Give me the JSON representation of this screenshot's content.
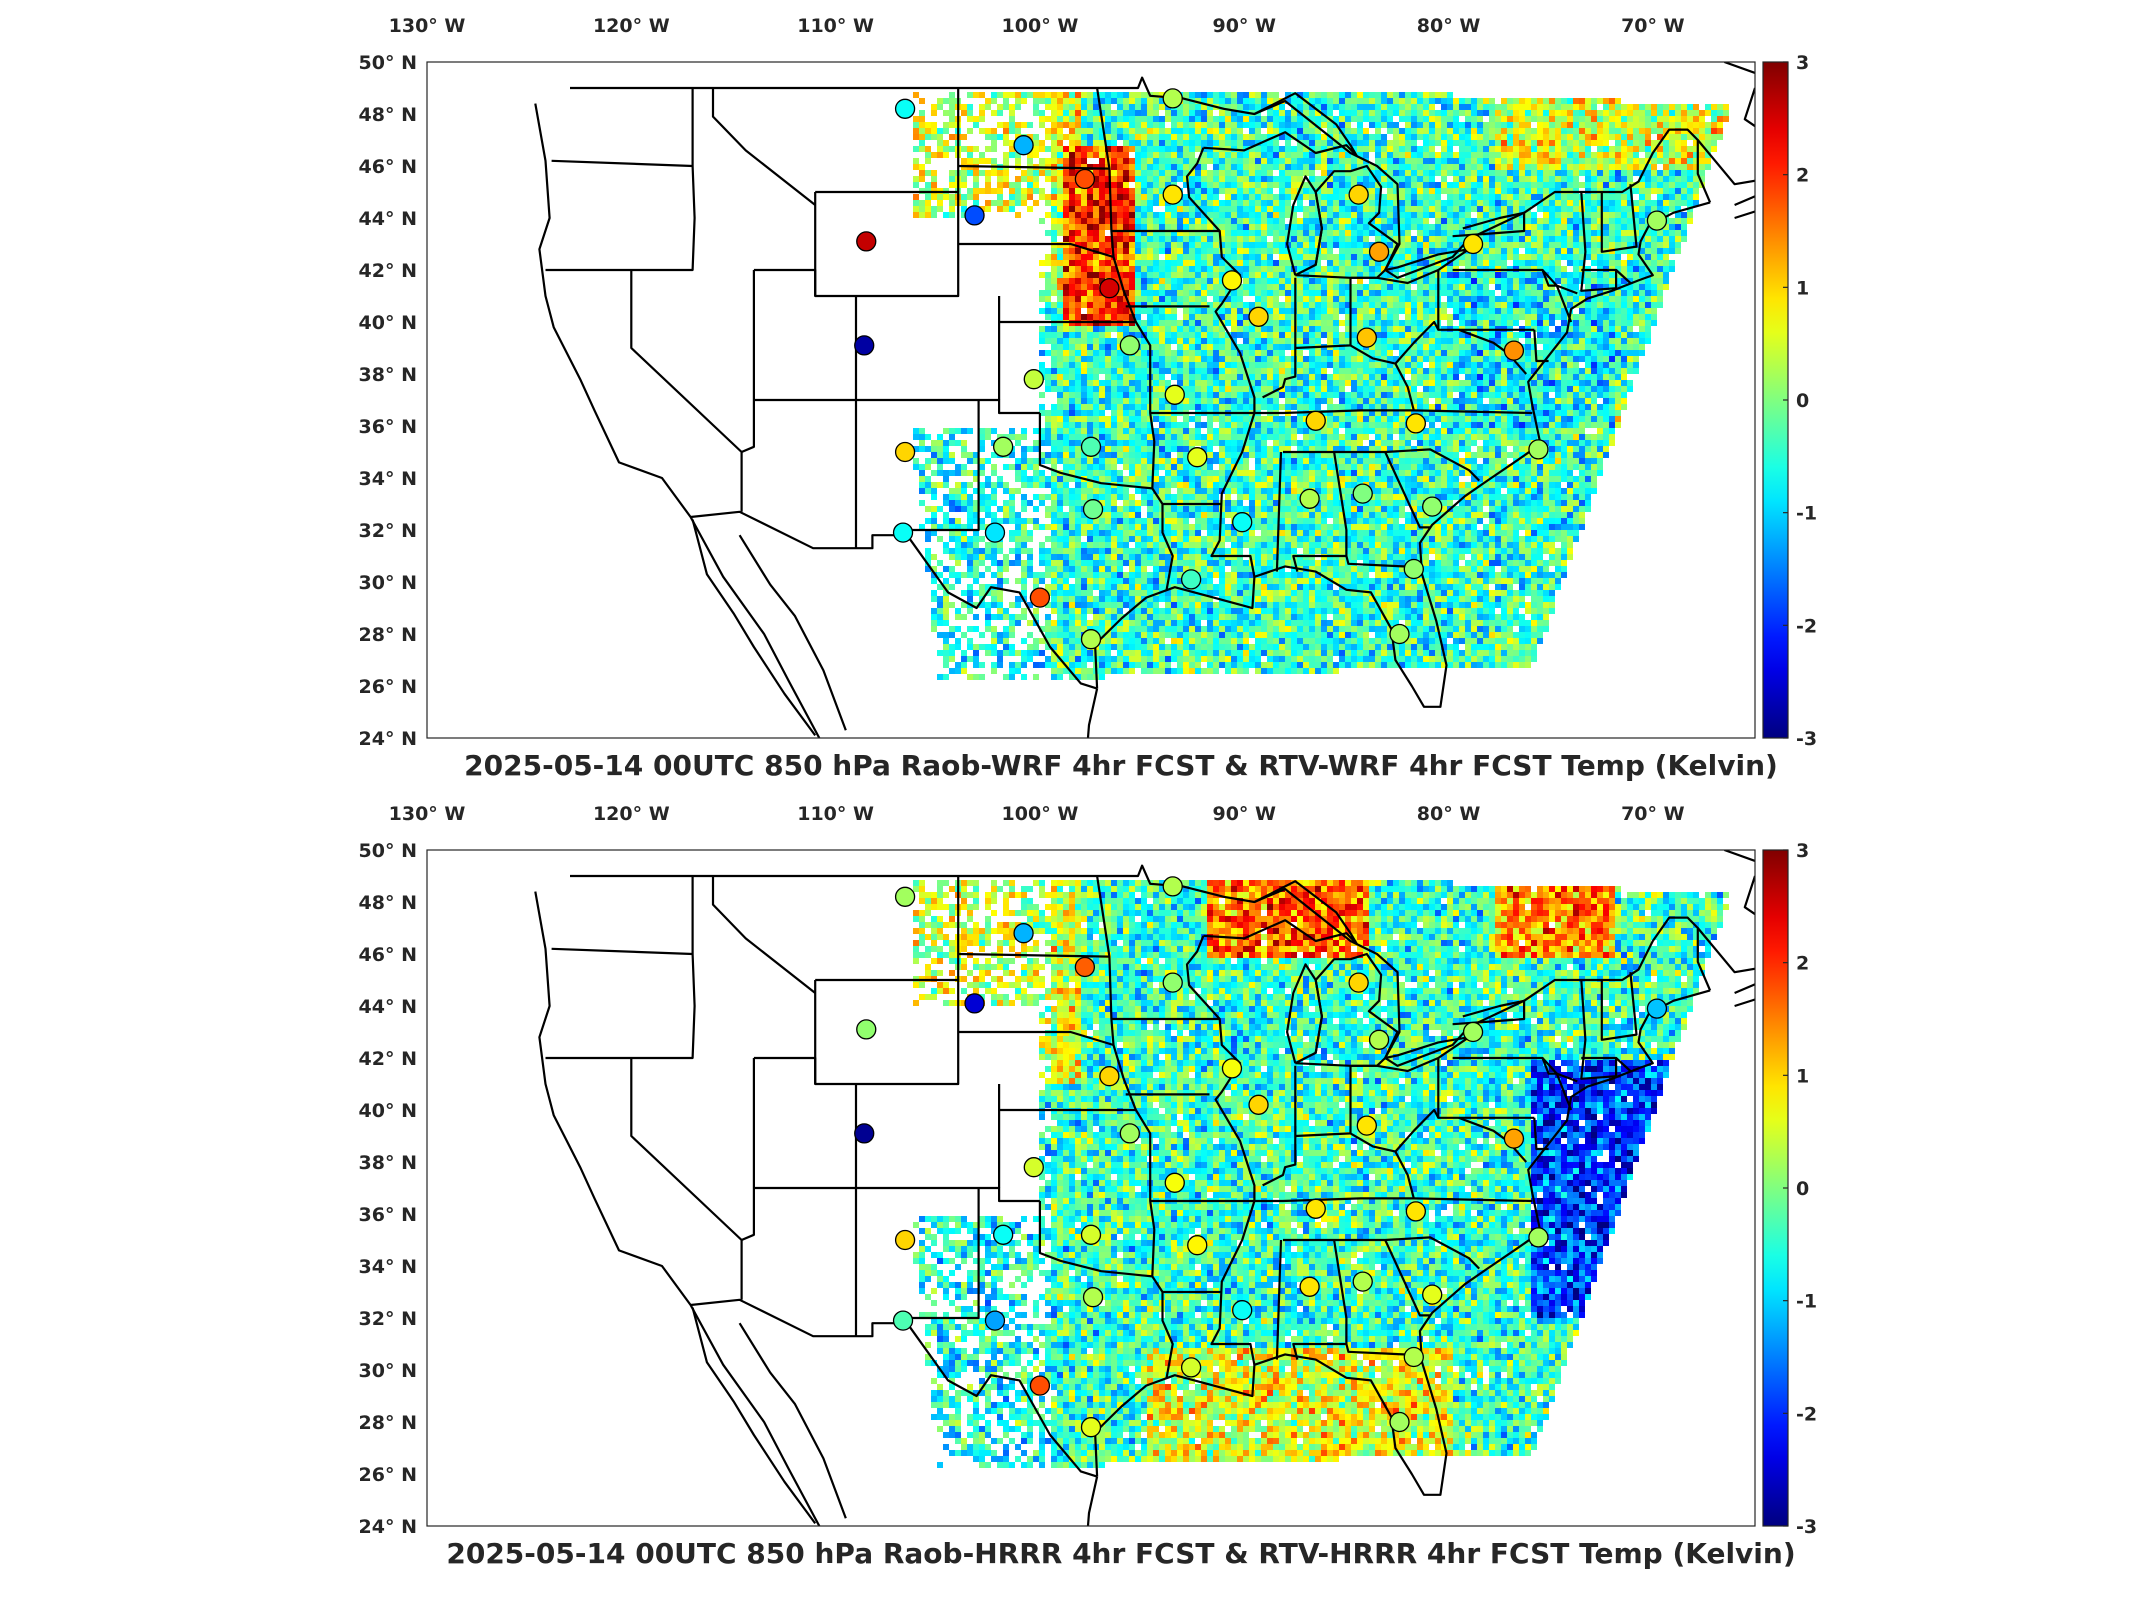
{
  "panels": [
    {
      "id": "wrf",
      "title": "2025-05-14 00UTC 850 hPa Raob-WRF 4hr FCST & RTV-WRF 4hr FCST Temp (Kelvin)",
      "field_variant": "wrf",
      "stations": [
        {
          "lon": -106.6,
          "lat": 48.2,
          "v": -0.7
        },
        {
          "lon": -100.8,
          "lat": 46.8,
          "v": -1.2
        },
        {
          "lon": -97.8,
          "lat": 45.5,
          "v": 1.8
        },
        {
          "lon": -103.2,
          "lat": 44.1,
          "v": -1.8
        },
        {
          "lon": -108.5,
          "lat": 43.1,
          "v": 2.6
        },
        {
          "lon": -108.6,
          "lat": 39.1,
          "v": -2.8
        },
        {
          "lon": -106.6,
          "lat": 35.0,
          "v": 1.0
        },
        {
          "lon": -106.7,
          "lat": 31.9,
          "v": -0.7
        },
        {
          "lon": -102.2,
          "lat": 31.9,
          "v": -0.9
        },
        {
          "lon": -101.8,
          "lat": 35.2,
          "v": 0.2
        },
        {
          "lon": -100.0,
          "lat": 29.4,
          "v": 1.8
        },
        {
          "lon": -97.5,
          "lat": 27.8,
          "v": 0.3
        },
        {
          "lon": -97.4,
          "lat": 32.8,
          "v": -0.1
        },
        {
          "lon": -97.5,
          "lat": 35.2,
          "v": -0.3
        },
        {
          "lon": -100.3,
          "lat": 37.8,
          "v": 0.4
        },
        {
          "lon": -96.6,
          "lat": 41.3,
          "v": 2.5
        },
        {
          "lon": -95.6,
          "lat": 39.1,
          "v": 0.1
        },
        {
          "lon": -93.4,
          "lat": 37.2,
          "v": 0.6
        },
        {
          "lon": -92.3,
          "lat": 34.8,
          "v": 0.6
        },
        {
          "lon": -93.5,
          "lat": 44.9,
          "v": 0.9
        },
        {
          "lon": -93.5,
          "lat": 48.6,
          "v": 0.3
        },
        {
          "lon": -92.6,
          "lat": 30.1,
          "v": -0.4
        },
        {
          "lon": -90.6,
          "lat": 41.6,
          "v": 0.8
        },
        {
          "lon": -89.3,
          "lat": 40.2,
          "v": 1.0
        },
        {
          "lon": -90.1,
          "lat": 32.3,
          "v": -0.7
        },
        {
          "lon": -86.8,
          "lat": 33.2,
          "v": 0.3
        },
        {
          "lon": -86.5,
          "lat": 36.2,
          "v": 1.0
        },
        {
          "lon": -84.2,
          "lat": 33.4,
          "v": 0.0
        },
        {
          "lon": -84.0,
          "lat": 39.4,
          "v": 1.1
        },
        {
          "lon": -84.4,
          "lat": 44.9,
          "v": 1.0
        },
        {
          "lon": -83.4,
          "lat": 42.7,
          "v": 1.3
        },
        {
          "lon": -81.6,
          "lat": 36.1,
          "v": 0.9
        },
        {
          "lon": -80.8,
          "lat": 32.9,
          "v": 0.1
        },
        {
          "lon": -81.7,
          "lat": 30.5,
          "v": 0.1
        },
        {
          "lon": -82.4,
          "lat": 28.0,
          "v": 0.2
        },
        {
          "lon": -78.8,
          "lat": 43.0,
          "v": 0.9
        },
        {
          "lon": -76.8,
          "lat": 38.9,
          "v": 1.4
        },
        {
          "lon": -75.6,
          "lat": 35.1,
          "v": 0.2
        },
        {
          "lon": -69.8,
          "lat": 43.9,
          "v": 0.2
        }
      ]
    },
    {
      "id": "hrrr",
      "title": "2025-05-14 00UTC 850 hPa Raob-HRRR 4hr FCST & RTV-HRRR 4hr FCST Temp (Kelvin)",
      "field_variant": "hrrr",
      "stations": [
        {
          "lon": -106.6,
          "lat": 48.2,
          "v": 0.2
        },
        {
          "lon": -100.8,
          "lat": 46.8,
          "v": -1.2
        },
        {
          "lon": -97.8,
          "lat": 45.5,
          "v": 1.7
        },
        {
          "lon": -103.2,
          "lat": 44.1,
          "v": -2.5
        },
        {
          "lon": -108.5,
          "lat": 43.1,
          "v": 0.1
        },
        {
          "lon": -108.6,
          "lat": 39.1,
          "v": -2.9
        },
        {
          "lon": -106.6,
          "lat": 35.0,
          "v": 1.0
        },
        {
          "lon": -106.7,
          "lat": 31.9,
          "v": -0.3
        },
        {
          "lon": -102.2,
          "lat": 31.9,
          "v": -1.3
        },
        {
          "lon": -101.8,
          "lat": 35.2,
          "v": -0.7
        },
        {
          "lon": -100.0,
          "lat": 29.4,
          "v": 1.8
        },
        {
          "lon": -97.5,
          "lat": 27.8,
          "v": 0.6
        },
        {
          "lon": -97.4,
          "lat": 32.8,
          "v": 0.3
        },
        {
          "lon": -97.5,
          "lat": 35.2,
          "v": 0.5
        },
        {
          "lon": -100.3,
          "lat": 37.8,
          "v": 0.5
        },
        {
          "lon": -96.6,
          "lat": 41.3,
          "v": 1.0
        },
        {
          "lon": -95.6,
          "lat": 39.1,
          "v": 0.2
        },
        {
          "lon": -93.4,
          "lat": 37.2,
          "v": 0.7
        },
        {
          "lon": -92.3,
          "lat": 34.8,
          "v": 0.8
        },
        {
          "lon": -93.5,
          "lat": 44.9,
          "v": 0.1
        },
        {
          "lon": -93.5,
          "lat": 48.6,
          "v": 0.3
        },
        {
          "lon": -92.6,
          "lat": 30.1,
          "v": 0.5
        },
        {
          "lon": -90.6,
          "lat": 41.6,
          "v": 0.7
        },
        {
          "lon": -89.3,
          "lat": 40.2,
          "v": 1.0
        },
        {
          "lon": -90.1,
          "lat": 32.3,
          "v": -0.7
        },
        {
          "lon": -86.8,
          "lat": 33.2,
          "v": 0.9
        },
        {
          "lon": -86.5,
          "lat": 36.2,
          "v": 0.9
        },
        {
          "lon": -84.2,
          "lat": 33.4,
          "v": 0.3
        },
        {
          "lon": -84.0,
          "lat": 39.4,
          "v": 0.9
        },
        {
          "lon": -84.4,
          "lat": 44.9,
          "v": 1.0
        },
        {
          "lon": -83.4,
          "lat": 42.7,
          "v": 0.3
        },
        {
          "lon": -81.6,
          "lat": 36.1,
          "v": 0.9
        },
        {
          "lon": -80.8,
          "lat": 32.9,
          "v": 0.6
        },
        {
          "lon": -81.7,
          "lat": 30.5,
          "v": 0.3
        },
        {
          "lon": -82.4,
          "lat": 28.0,
          "v": 0.2
        },
        {
          "lon": -78.8,
          "lat": 43.0,
          "v": 0.2
        },
        {
          "lon": -76.8,
          "lat": 38.9,
          "v": 1.3
        },
        {
          "lon": -75.6,
          "lat": 35.1,
          "v": 0.2
        },
        {
          "lon": -69.8,
          "lat": 43.9,
          "v": -1.1
        }
      ]
    }
  ],
  "lon_ticks": [
    "130° W",
    "120° W",
    "110° W",
    "100° W",
    "90° W",
    "80° W",
    "70° W"
  ],
  "lat_ticks": [
    "50° N",
    "48° N",
    "46° N",
    "44° N",
    "42° N",
    "40° N",
    "38° N",
    "36° N",
    "34° N",
    "32° N",
    "30° N",
    "28° N",
    "26° N",
    "24° N"
  ],
  "colorbar": {
    "ticks": [
      "3",
      "2",
      "1",
      "0",
      "-1",
      "-2",
      "-3"
    ],
    "vmin": -3,
    "vmax": 3,
    "colormap": "jet"
  },
  "extent": {
    "lon_min": -130,
    "lon_max": -65,
    "lat_min": 24,
    "lat_max": 50
  },
  "colors": {
    "state_border": "#000000",
    "marker_edge": "#000000",
    "frame": "#262626",
    "background": "#ffffff"
  }
}
